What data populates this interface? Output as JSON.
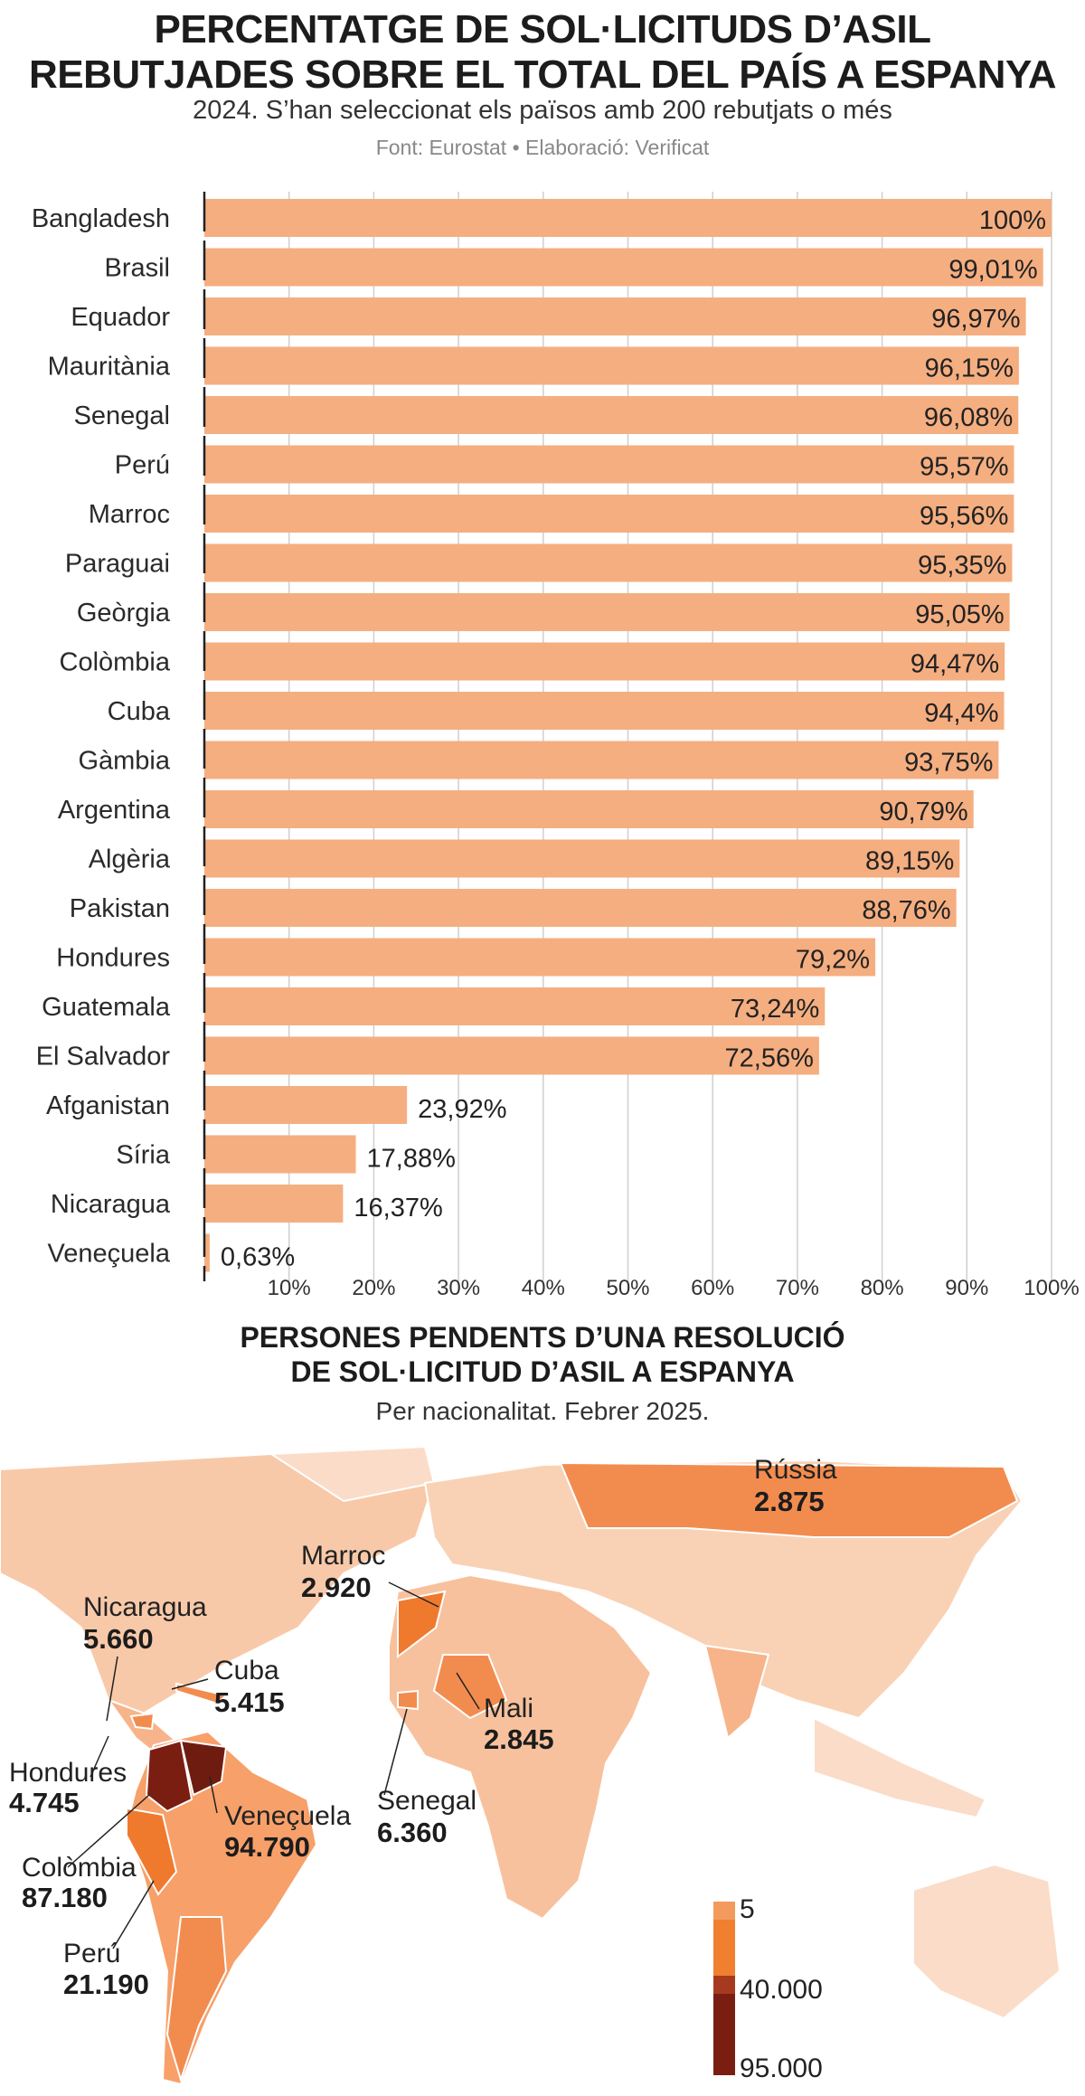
{
  "chart_data": [
    {
      "type": "bar",
      "orientation": "horizontal",
      "title": "PERCENTATGE DE SOL·LICITUDS D’ASIL REBUTJADES SOBRE EL TOTAL DEL PAÍS A ESPANYA",
      "subtitle": "2024. S’han seleccionat els països amb 200 rebutjats o més",
      "source": "Font: Eurostat • Elaboració: Verificat",
      "categories": [
        "Bangladesh",
        "Brasil",
        "Equador",
        "Mauritània",
        "Senegal",
        "Perú",
        "Marroc",
        "Paraguai",
        "Geòrgia",
        "Colòmbia",
        "Cuba",
        "Gàmbia",
        "Argentina",
        "Algèria",
        "Pakistan",
        "Hondures",
        "Guatemala",
        "El Salvador",
        "Afganistan",
        "Síria",
        "Nicaragua",
        "Veneçuela"
      ],
      "values": [
        100,
        99.01,
        96.97,
        96.15,
        96.08,
        95.57,
        95.56,
        95.35,
        95.05,
        94.47,
        94.4,
        93.75,
        90.79,
        89.15,
        88.76,
        79.2,
        73.24,
        72.56,
        23.92,
        17.88,
        16.37,
        0.63
      ],
      "data_labels": [
        "100%",
        "99,01%",
        "96,97%",
        "96,15%",
        "96,08%",
        "95,57%",
        "95,56%",
        "95,35%",
        "95,05%",
        "94,47%",
        "94,4%",
        "93,75%",
        "90,79%",
        "89,15%",
        "88,76%",
        "79,2%",
        "73,24%",
        "72,56%",
        "23,92%",
        "17,88%",
        "16,37%",
        "0,63%"
      ],
      "xlim": [
        0,
        100
      ],
      "x_ticks": [
        "10%",
        "20%",
        "30%",
        "40%",
        "50%",
        "60%",
        "70%",
        "80%",
        "90%",
        "100%"
      ],
      "grid": true,
      "bar_color": "#F5AE80"
    },
    {
      "type": "choropleth",
      "title": "PERSONES PENDENTS D’UNA RESOLUCIÓ DE SOL·LICITUD D’ASIL A ESPANYA",
      "subtitle": "Per nacionalitat. Febrer 2025.",
      "labels": [
        {
          "name": "Rússia",
          "value": "2.875"
        },
        {
          "name": "Marroc",
          "value": "2.920"
        },
        {
          "name": "Nicaragua",
          "value": "5.660"
        },
        {
          "name": "Cuba",
          "value": "5.415"
        },
        {
          "name": "Mali",
          "value": "2.845"
        },
        {
          "name": "Hondures",
          "value": "4.745"
        },
        {
          "name": "Senegal",
          "value": "6.360"
        },
        {
          "name": "Veneçuela",
          "value": "94.790"
        },
        {
          "name": "Colòmbia",
          "value": "87.180"
        },
        {
          "name": "Perú",
          "value": "21.190"
        }
      ],
      "legend": {
        "labels": [
          "5",
          "40.000",
          "95.000"
        ],
        "colors": [
          "#FBDCC8",
          "#F7B48A",
          "#F28C4E",
          "#EF7A2E",
          "#A63A1E",
          "#7A1E12"
        ]
      }
    }
  ]
}
